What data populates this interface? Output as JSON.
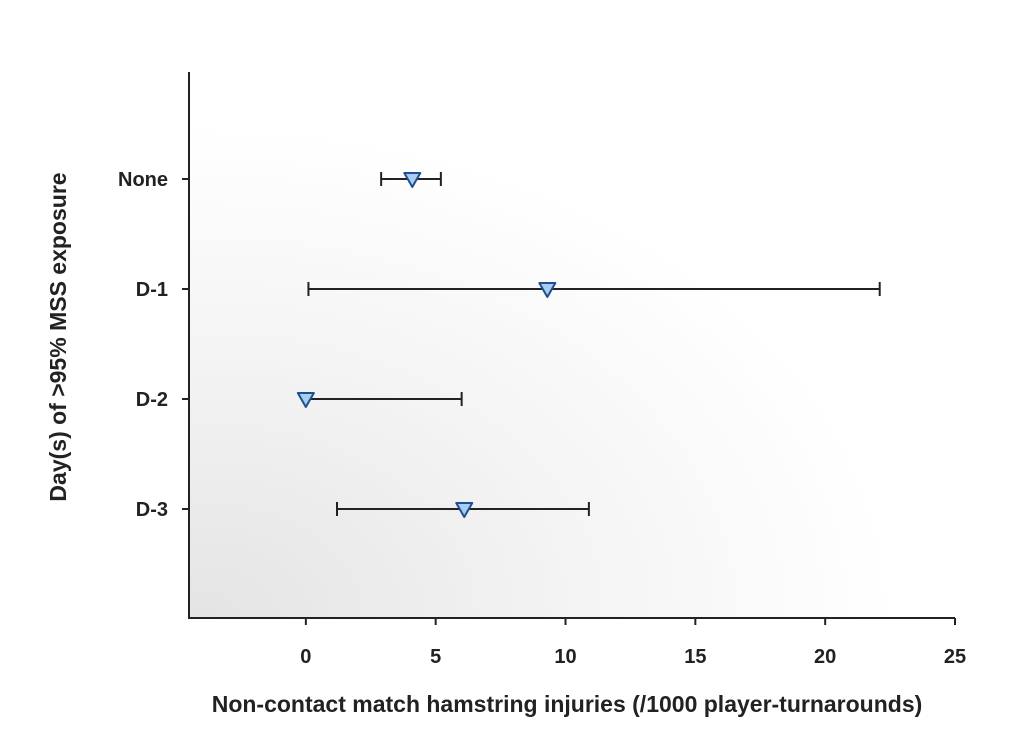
{
  "chart_data": {
    "type": "scatter",
    "subtype": "forest-plot",
    "title": "",
    "xlabel": "Non-contact match hamstring injuries (/1000 player-turnarounds)",
    "ylabel": "Day(s) of >95% MSS exposure",
    "xlim": [
      -4.5,
      25
    ],
    "xticks": [
      0,
      5,
      10,
      15,
      20,
      25
    ],
    "categories": [
      "None",
      "D-1",
      "D-2",
      "D-3"
    ],
    "points": [
      {
        "category": "None",
        "value": 4.1,
        "ci_low": 2.9,
        "ci_high": 5.2
      },
      {
        "category": "D-1",
        "value": 9.3,
        "ci_low": 0.1,
        "ci_high": 22.1
      },
      {
        "category": "D-2",
        "value": 0.0,
        "ci_low": 0.0,
        "ci_high": 6.0
      },
      {
        "category": "D-3",
        "value": 6.1,
        "ci_low": 1.2,
        "ci_high": 10.9
      }
    ],
    "marker": "triangle-down",
    "grid": false,
    "legend": "none",
    "colors": {
      "marker_fill": "#a9ccf2",
      "marker_stroke": "#1f4f8f",
      "line": "#222222"
    }
  }
}
